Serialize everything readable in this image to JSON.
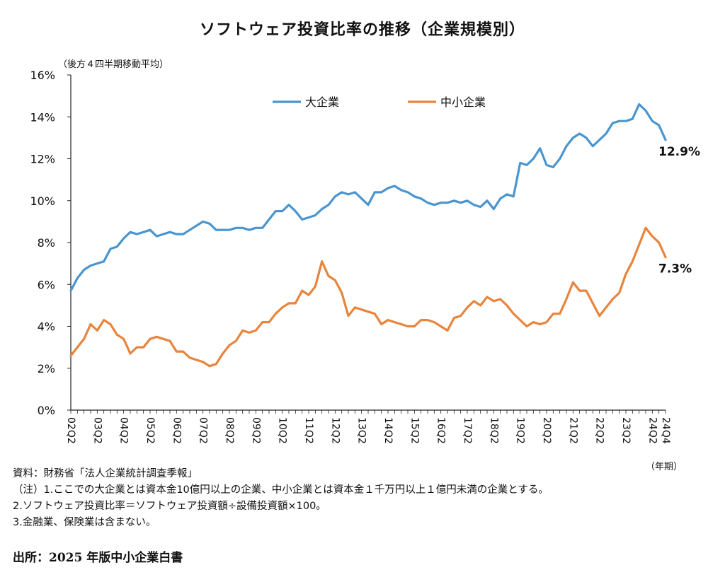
{
  "chart_data": {
    "type": "line",
    "title": "ソフトウェア投資比率の推移（企業規模別）",
    "ylabel": "（後方４四半期移動平均）",
    "xlabel": "（年期）",
    "ylim": [
      0,
      16
    ],
    "yticks": [
      "0%",
      "2%",
      "4%",
      "6%",
      "8%",
      "10%",
      "12%",
      "14%",
      "16%"
    ],
    "grid": false,
    "legend_position": "top",
    "x_start": "2002Q2",
    "x_end": "2024Q4",
    "tick_labels": [
      "02Q2",
      "03Q2",
      "04Q2",
      "05Q2",
      "06Q2",
      "07Q2",
      "08Q2",
      "09Q2",
      "10Q2",
      "11Q2",
      "12Q2",
      "13Q2",
      "14Q2",
      "15Q2",
      "16Q2",
      "17Q2",
      "18Q2",
      "19Q2",
      "20Q2",
      "21Q2",
      "22Q2",
      "23Q2",
      "24Q2",
      "24Q4"
    ],
    "series": [
      {
        "name": "大企業",
        "color": "#4a95cf",
        "end_label": "12.9%",
        "values": [
          5.7,
          6.3,
          6.7,
          6.9,
          7.0,
          7.1,
          7.7,
          7.8,
          8.2,
          8.5,
          8.4,
          8.5,
          8.6,
          8.3,
          8.4,
          8.5,
          8.4,
          8.4,
          8.6,
          8.8,
          9.0,
          8.9,
          8.6,
          8.6,
          8.6,
          8.7,
          8.7,
          8.6,
          8.7,
          8.7,
          9.1,
          9.5,
          9.5,
          9.8,
          9.5,
          9.1,
          9.2,
          9.3,
          9.6,
          9.8,
          10.2,
          10.4,
          10.3,
          10.4,
          10.1,
          9.8,
          10.4,
          10.4,
          10.6,
          10.7,
          10.5,
          10.4,
          10.2,
          10.1,
          9.9,
          9.8,
          9.9,
          9.9,
          10.0,
          9.9,
          10.0,
          9.8,
          9.7,
          10.0,
          9.6,
          10.1,
          10.3,
          10.2,
          11.8,
          11.7,
          12.0,
          12.5,
          11.7,
          11.6,
          12.0,
          12.6,
          13.0,
          13.2,
          13.0,
          12.6,
          12.9,
          13.2,
          13.7,
          13.8,
          13.8,
          13.9,
          14.6,
          14.3,
          13.8,
          13.6,
          12.9
        ]
      },
      {
        "name": "中小企業",
        "color": "#e8843c",
        "end_label": "7.3%",
        "values": [
          2.6,
          3.0,
          3.4,
          4.1,
          3.8,
          4.3,
          4.1,
          3.6,
          3.4,
          2.7,
          3.0,
          3.0,
          3.4,
          3.5,
          3.4,
          3.3,
          2.8,
          2.8,
          2.5,
          2.4,
          2.3,
          2.1,
          2.2,
          2.7,
          3.1,
          3.3,
          3.8,
          3.7,
          3.8,
          4.2,
          4.2,
          4.6,
          4.9,
          5.1,
          5.1,
          5.7,
          5.5,
          5.9,
          7.1,
          6.4,
          6.2,
          5.6,
          4.5,
          4.9,
          4.8,
          4.7,
          4.6,
          4.1,
          4.3,
          4.2,
          4.1,
          4.0,
          4.0,
          4.3,
          4.3,
          4.2,
          4.0,
          3.8,
          4.4,
          4.5,
          4.9,
          5.2,
          5.0,
          5.4,
          5.2,
          5.3,
          5.0,
          4.6,
          4.3,
          4.0,
          4.2,
          4.1,
          4.2,
          4.6,
          4.6,
          5.3,
          6.1,
          5.7,
          5.7,
          5.1,
          4.5,
          4.9,
          5.3,
          5.6,
          6.5,
          7.1,
          7.9,
          8.7,
          8.3,
          8.0,
          7.3
        ]
      }
    ]
  },
  "notes": {
    "line1": "資料：財務省「法人企業統計調査季報」",
    "line2": "（注）1.ここでの大企業とは資本金10億円以上の企業、中小企業とは資本金１千万円以上１億円未満の企業とする。",
    "line3": "2.ソフトウェア投資比率＝ソフトウェア投資額÷設備投資額×100。",
    "line4": "3.金融業、保険業は含まない。"
  },
  "source": "出所：2025 年版中小企業白書"
}
